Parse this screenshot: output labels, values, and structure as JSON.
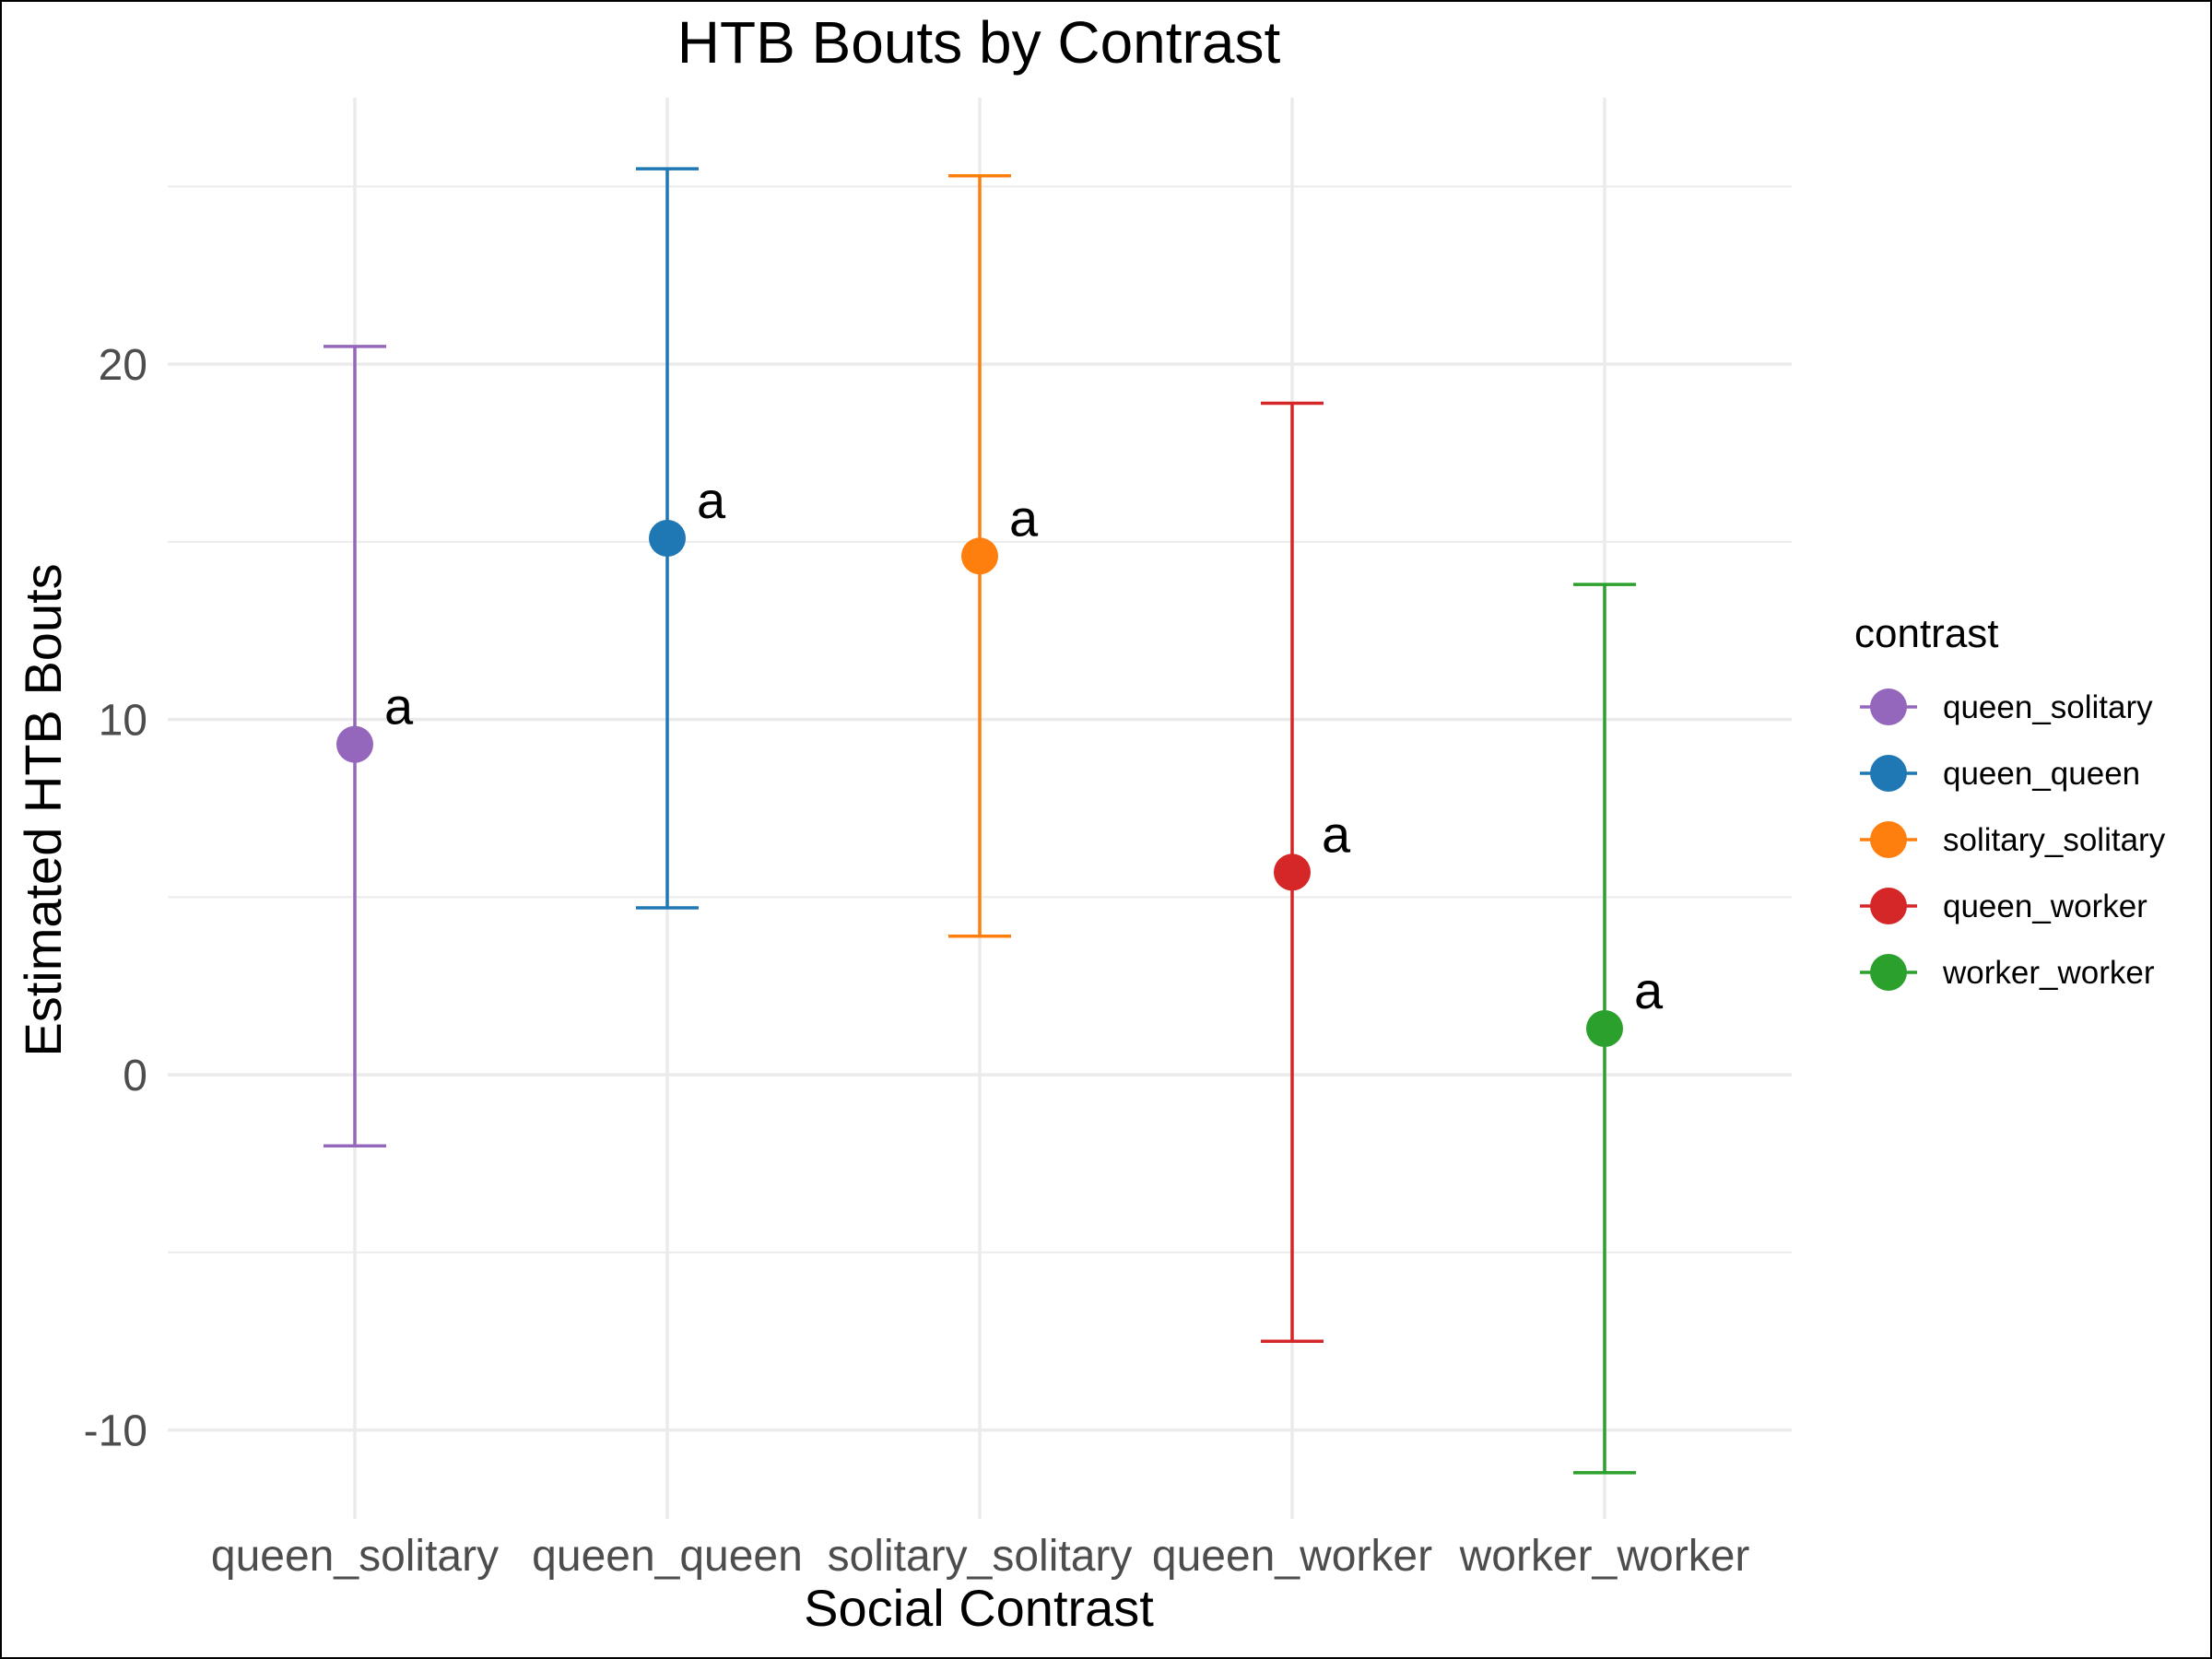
{
  "chart_data": {
    "type": "scatter",
    "title": "HTB Bouts by Contrast",
    "xlabel": "Social Contrast",
    "ylabel": "Estimated HTB Bouts",
    "categories": [
      "queen_solitary",
      "queen_queen",
      "solitary_solitary",
      "queen_worker",
      "worker_worker"
    ],
    "ylim": [
      -12.5,
      27.5
    ],
    "yticks": [
      -10,
      0,
      10,
      20
    ],
    "yticks_minor": [
      -5,
      5,
      15,
      25
    ],
    "grid": true,
    "legend": {
      "title": "contrast",
      "position": "right",
      "entries": [
        "queen_solitary",
        "queen_queen",
        "solitary_solitary",
        "queen_worker",
        "worker_worker"
      ]
    },
    "points": [
      {
        "category": "queen_solitary",
        "estimate": 9.3,
        "lower": -2.0,
        "upper": 20.5,
        "label": "a",
        "color": "#9467bd"
      },
      {
        "category": "queen_queen",
        "estimate": 15.1,
        "lower": 4.7,
        "upper": 25.5,
        "label": "a",
        "color": "#1f77b4"
      },
      {
        "category": "solitary_solitary",
        "estimate": 14.6,
        "lower": 3.9,
        "upper": 25.3,
        "label": "a",
        "color": "#ff7f0e"
      },
      {
        "category": "queen_worker",
        "estimate": 5.7,
        "lower": -7.5,
        "upper": 18.9,
        "label": "a",
        "color": "#d62728"
      },
      {
        "category": "worker_worker",
        "estimate": 1.3,
        "lower": -11.2,
        "upper": 13.8,
        "label": "a",
        "color": "#2ca02c"
      }
    ]
  }
}
